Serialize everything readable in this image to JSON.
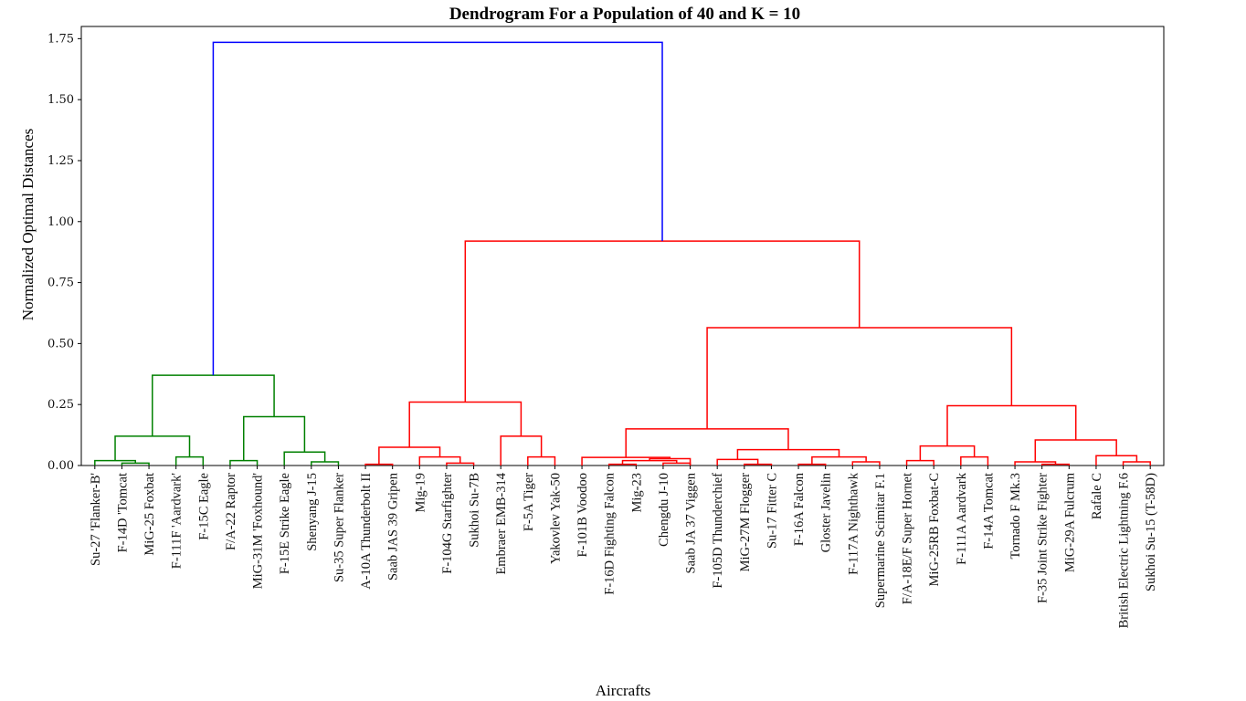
{
  "chart_data": {
    "type": "dendrogram",
    "title": "Dendrogram For a Population of 40 and K = 10",
    "xlabel": "Aircrafts",
    "ylabel": "Normalized Optimal Distances",
    "ylim": [
      0,
      1.8
    ],
    "yticks": [
      0.0,
      0.25,
      0.5,
      0.75,
      1.0,
      1.25,
      1.5,
      1.75
    ],
    "ytick_labels": [
      "0.00",
      "0.25",
      "0.50",
      "0.75",
      "1.00",
      "1.25",
      "1.50",
      "1.75"
    ],
    "colors": {
      "root": "#0000ff",
      "cluster_1": "#008000",
      "cluster_2": "#ff0000",
      "frame": "#000000"
    },
    "leaves": [
      "Su-27 'Flanker-B'",
      "F-14D 'Tomcat",
      "MiG-25 Foxbat",
      "F-111F 'Aardvark'",
      "F-15C Eagle",
      "F/A-22 Raptor",
      "MiG-31M 'Foxhound'",
      "F-15E Strike Eagle",
      "Shenyang J-15",
      "Su-35 Super Flanker",
      "A-10A Thunderbolt II",
      "Saab JAS 39 Gripen",
      "Mig-19",
      "F-104G Starfighter",
      "Sukhoi Su-7B",
      "Embraer EMB-314",
      "F-5A Tiger",
      "Yakovlev Yak-50",
      "F-101B Voodoo",
      "F-16D Fighting Falcon",
      "Mig-23",
      "Chengdu J-10",
      "Saab JA 37 Viggen",
      "F-105D Thunderchief",
      "MiG-27M Flogger",
      "Su-17 Fitter C",
      "F-16A Falcon",
      "Gloster Javelin",
      "F-117A Nighthawk",
      "Supermarine Scimitar F.1",
      "F/A-18E/F Super Hornet",
      "MiG-25RB Foxbat-C",
      "F-111A Aardvark",
      "F-14A Tomcat",
      "Tornado F Mk.3",
      "F-35 Joint Strike Fighter",
      "MiG-29A Fulcrum",
      "Rafale C",
      "British Electric Lightning F.6",
      "Sukhoi Su-15 (T-58D)"
    ],
    "merges": [
      {
        "a": 1,
        "b": 2,
        "height": 0.01,
        "color": "green"
      },
      {
        "a": 0,
        "b": "m0",
        "height": 0.02,
        "color": "green"
      },
      {
        "a": 3,
        "b": 4,
        "height": 0.035,
        "color": "green"
      },
      {
        "a": "m1",
        "b": "m2",
        "height": 0.12,
        "color": "green"
      },
      {
        "a": 5,
        "b": 6,
        "height": 0.02,
        "color": "green"
      },
      {
        "a": 8,
        "b": 9,
        "height": 0.015,
        "color": "green"
      },
      {
        "a": 7,
        "b": "m5",
        "height": 0.055,
        "color": "green"
      },
      {
        "a": "m4",
        "b": "m6",
        "height": 0.2,
        "color": "green"
      },
      {
        "a": "m3",
        "b": "m7",
        "height": 0.37,
        "color": "green"
      },
      {
        "a": 10,
        "b": 11,
        "height": 0.005,
        "color": "red"
      },
      {
        "a": 13,
        "b": 14,
        "height": 0.01,
        "color": "red"
      },
      {
        "a": 12,
        "b": "m10",
        "height": 0.035,
        "color": "red"
      },
      {
        "a": "m9",
        "b": "m11",
        "height": 0.075,
        "color": "red"
      },
      {
        "a": 16,
        "b": 17,
        "height": 0.035,
        "color": "red"
      },
      {
        "a": 15,
        "b": "m13",
        "height": 0.12,
        "color": "red"
      },
      {
        "a": "m12",
        "b": "m14",
        "height": 0.26,
        "color": "red"
      },
      {
        "a": 19,
        "b": 20,
        "height": 0.005,
        "color": "red"
      },
      {
        "a": 21,
        "b": 22,
        "height": 0.01,
        "color": "red"
      },
      {
        "a": "m16",
        "b": "m17",
        "height": 0.02,
        "color": "red"
      },
      {
        "a": "m18",
        "b": "m18b",
        "height": 0.028,
        "color": "red"
      },
      {
        "a": 18,
        "b": "m19",
        "height": 0.033,
        "color": "red"
      },
      {
        "a": 24,
        "b": 25,
        "height": 0.005,
        "color": "red"
      },
      {
        "a": 23,
        "b": "m21",
        "height": 0.025,
        "color": "red"
      },
      {
        "a": 26,
        "b": 27,
        "height": 0.005,
        "color": "red"
      },
      {
        "a": 28,
        "b": 29,
        "height": 0.015,
        "color": "red"
      },
      {
        "a": "m23",
        "b": "m24",
        "height": 0.035,
        "color": "red"
      },
      {
        "a": "m22",
        "b": "m25",
        "height": 0.065,
        "color": "red"
      },
      {
        "a": "m20",
        "b": "m26",
        "height": 0.15,
        "color": "red"
      },
      {
        "a": 30,
        "b": 31,
        "height": 0.02,
        "color": "red"
      },
      {
        "a": 32,
        "b": 33,
        "height": 0.035,
        "color": "red"
      },
      {
        "a": "m28",
        "b": "m29",
        "height": 0.08,
        "color": "red"
      },
      {
        "a": 35,
        "b": 36,
        "height": 0.005,
        "color": "red"
      },
      {
        "a": 34,
        "b": "m31",
        "height": 0.015,
        "color": "red"
      },
      {
        "a": 38,
        "b": 39,
        "height": 0.015,
        "color": "red"
      },
      {
        "a": 37,
        "b": "m33",
        "height": 0.04,
        "color": "red"
      },
      {
        "a": "m32",
        "b": "m34",
        "height": 0.105,
        "color": "red"
      },
      {
        "a": "m30",
        "b": "m35",
        "height": 0.245,
        "color": "red"
      },
      {
        "a": "m27",
        "b": "m36",
        "height": 0.565,
        "color": "red"
      },
      {
        "a": "m15",
        "b": "m37",
        "height": 0.92,
        "color": "red"
      },
      {
        "a": "m8",
        "b": "m38",
        "height": 1.735,
        "color": "blue"
      }
    ]
  }
}
